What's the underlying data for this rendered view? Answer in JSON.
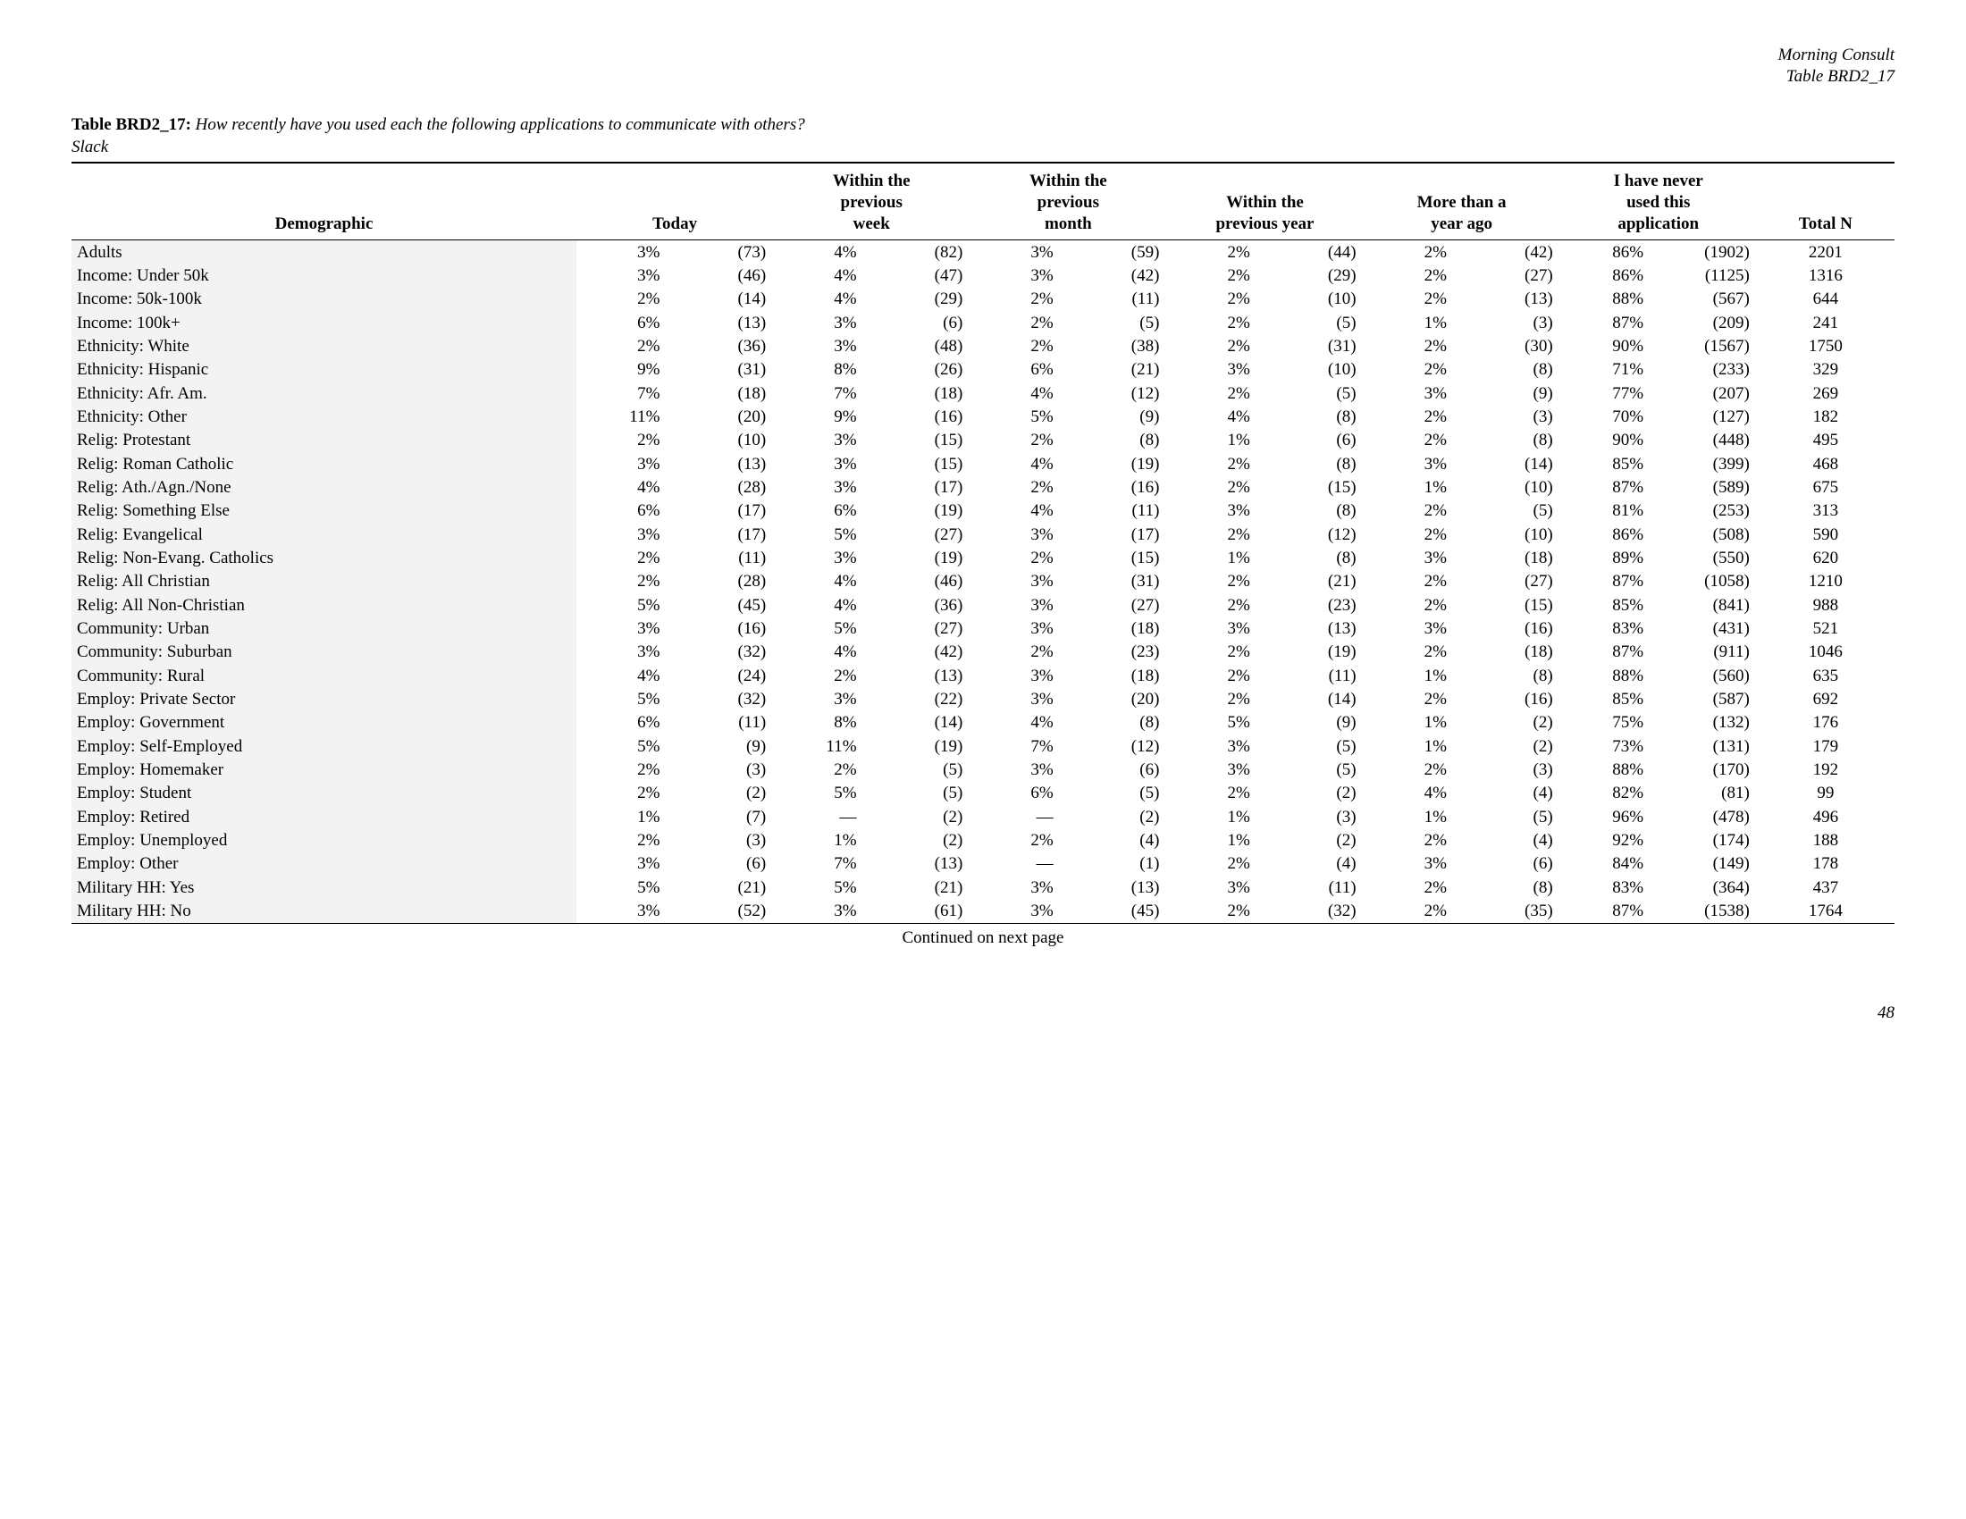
{
  "header": {
    "org": "Morning Consult",
    "tableref": "Table BRD2_17"
  },
  "title": {
    "label": "Table BRD2_17:",
    "question": "How recently have you used each the following applications to communicate with others?",
    "sub": "Slack"
  },
  "columns": {
    "demographic": "Demographic",
    "c1": "Today",
    "c2": "Within the previous week",
    "c3": "Within the previous month",
    "c4": "Within the previous year",
    "c5": "More than a year ago",
    "c6": "I have never used this application",
    "totaln": "Total N"
  },
  "rows": [
    {
      "label": "Adults",
      "c": [
        [
          "3%",
          "(73)"
        ],
        [
          "4%",
          "(82)"
        ],
        [
          "3%",
          "(59)"
        ],
        [
          "2%",
          "(44)"
        ],
        [
          "2%",
          "(42)"
        ],
        [
          "86%",
          "(1902)"
        ]
      ],
      "n": "2201"
    },
    {
      "label": "Income: Under 50k",
      "c": [
        [
          "3%",
          "(46)"
        ],
        [
          "4%",
          "(47)"
        ],
        [
          "3%",
          "(42)"
        ],
        [
          "2%",
          "(29)"
        ],
        [
          "2%",
          "(27)"
        ],
        [
          "86%",
          "(1125)"
        ]
      ],
      "n": "1316"
    },
    {
      "label": "Income: 50k-100k",
      "c": [
        [
          "2%",
          "(14)"
        ],
        [
          "4%",
          "(29)"
        ],
        [
          "2%",
          "(11)"
        ],
        [
          "2%",
          "(10)"
        ],
        [
          "2%",
          "(13)"
        ],
        [
          "88%",
          "(567)"
        ]
      ],
      "n": "644"
    },
    {
      "label": "Income: 100k+",
      "c": [
        [
          "6%",
          "(13)"
        ],
        [
          "3%",
          "(6)"
        ],
        [
          "2%",
          "(5)"
        ],
        [
          "2%",
          "(5)"
        ],
        [
          "1%",
          "(3)"
        ],
        [
          "87%",
          "(209)"
        ]
      ],
      "n": "241"
    },
    {
      "label": "Ethnicity: White",
      "c": [
        [
          "2%",
          "(36)"
        ],
        [
          "3%",
          "(48)"
        ],
        [
          "2%",
          "(38)"
        ],
        [
          "2%",
          "(31)"
        ],
        [
          "2%",
          "(30)"
        ],
        [
          "90%",
          "(1567)"
        ]
      ],
      "n": "1750"
    },
    {
      "label": "Ethnicity: Hispanic",
      "c": [
        [
          "9%",
          "(31)"
        ],
        [
          "8%",
          "(26)"
        ],
        [
          "6%",
          "(21)"
        ],
        [
          "3%",
          "(10)"
        ],
        [
          "2%",
          "(8)"
        ],
        [
          "71%",
          "(233)"
        ]
      ],
      "n": "329"
    },
    {
      "label": "Ethnicity: Afr. Am.",
      "c": [
        [
          "7%",
          "(18)"
        ],
        [
          "7%",
          "(18)"
        ],
        [
          "4%",
          "(12)"
        ],
        [
          "2%",
          "(5)"
        ],
        [
          "3%",
          "(9)"
        ],
        [
          "77%",
          "(207)"
        ]
      ],
      "n": "269"
    },
    {
      "label": "Ethnicity: Other",
      "c": [
        [
          "11%",
          "(20)"
        ],
        [
          "9%",
          "(16)"
        ],
        [
          "5%",
          "(9)"
        ],
        [
          "4%",
          "(8)"
        ],
        [
          "2%",
          "(3)"
        ],
        [
          "70%",
          "(127)"
        ]
      ],
      "n": "182"
    },
    {
      "label": "Relig: Protestant",
      "c": [
        [
          "2%",
          "(10)"
        ],
        [
          "3%",
          "(15)"
        ],
        [
          "2%",
          "(8)"
        ],
        [
          "1%",
          "(6)"
        ],
        [
          "2%",
          "(8)"
        ],
        [
          "90%",
          "(448)"
        ]
      ],
      "n": "495"
    },
    {
      "label": "Relig: Roman Catholic",
      "c": [
        [
          "3%",
          "(13)"
        ],
        [
          "3%",
          "(15)"
        ],
        [
          "4%",
          "(19)"
        ],
        [
          "2%",
          "(8)"
        ],
        [
          "3%",
          "(14)"
        ],
        [
          "85%",
          "(399)"
        ]
      ],
      "n": "468"
    },
    {
      "label": "Relig: Ath./Agn./None",
      "c": [
        [
          "4%",
          "(28)"
        ],
        [
          "3%",
          "(17)"
        ],
        [
          "2%",
          "(16)"
        ],
        [
          "2%",
          "(15)"
        ],
        [
          "1%",
          "(10)"
        ],
        [
          "87%",
          "(589)"
        ]
      ],
      "n": "675"
    },
    {
      "label": "Relig: Something Else",
      "c": [
        [
          "6%",
          "(17)"
        ],
        [
          "6%",
          "(19)"
        ],
        [
          "4%",
          "(11)"
        ],
        [
          "3%",
          "(8)"
        ],
        [
          "2%",
          "(5)"
        ],
        [
          "81%",
          "(253)"
        ]
      ],
      "n": "313"
    },
    {
      "label": "Relig: Evangelical",
      "c": [
        [
          "3%",
          "(17)"
        ],
        [
          "5%",
          "(27)"
        ],
        [
          "3%",
          "(17)"
        ],
        [
          "2%",
          "(12)"
        ],
        [
          "2%",
          "(10)"
        ],
        [
          "86%",
          "(508)"
        ]
      ],
      "n": "590"
    },
    {
      "label": "Relig: Non-Evang. Catholics",
      "c": [
        [
          "2%",
          "(11)"
        ],
        [
          "3%",
          "(19)"
        ],
        [
          "2%",
          "(15)"
        ],
        [
          "1%",
          "(8)"
        ],
        [
          "3%",
          "(18)"
        ],
        [
          "89%",
          "(550)"
        ]
      ],
      "n": "620"
    },
    {
      "label": "Relig: All Christian",
      "c": [
        [
          "2%",
          "(28)"
        ],
        [
          "4%",
          "(46)"
        ],
        [
          "3%",
          "(31)"
        ],
        [
          "2%",
          "(21)"
        ],
        [
          "2%",
          "(27)"
        ],
        [
          "87%",
          "(1058)"
        ]
      ],
      "n": "1210"
    },
    {
      "label": "Relig: All Non-Christian",
      "c": [
        [
          "5%",
          "(45)"
        ],
        [
          "4%",
          "(36)"
        ],
        [
          "3%",
          "(27)"
        ],
        [
          "2%",
          "(23)"
        ],
        [
          "2%",
          "(15)"
        ],
        [
          "85%",
          "(841)"
        ]
      ],
      "n": "988"
    },
    {
      "label": "Community: Urban",
      "c": [
        [
          "3%",
          "(16)"
        ],
        [
          "5%",
          "(27)"
        ],
        [
          "3%",
          "(18)"
        ],
        [
          "3%",
          "(13)"
        ],
        [
          "3%",
          "(16)"
        ],
        [
          "83%",
          "(431)"
        ]
      ],
      "n": "521"
    },
    {
      "label": "Community: Suburban",
      "c": [
        [
          "3%",
          "(32)"
        ],
        [
          "4%",
          "(42)"
        ],
        [
          "2%",
          "(23)"
        ],
        [
          "2%",
          "(19)"
        ],
        [
          "2%",
          "(18)"
        ],
        [
          "87%",
          "(911)"
        ]
      ],
      "n": "1046"
    },
    {
      "label": "Community: Rural",
      "c": [
        [
          "4%",
          "(24)"
        ],
        [
          "2%",
          "(13)"
        ],
        [
          "3%",
          "(18)"
        ],
        [
          "2%",
          "(11)"
        ],
        [
          "1%",
          "(8)"
        ],
        [
          "88%",
          "(560)"
        ]
      ],
      "n": "635"
    },
    {
      "label": "Employ: Private Sector",
      "c": [
        [
          "5%",
          "(32)"
        ],
        [
          "3%",
          "(22)"
        ],
        [
          "3%",
          "(20)"
        ],
        [
          "2%",
          "(14)"
        ],
        [
          "2%",
          "(16)"
        ],
        [
          "85%",
          "(587)"
        ]
      ],
      "n": "692"
    },
    {
      "label": "Employ: Government",
      "c": [
        [
          "6%",
          "(11)"
        ],
        [
          "8%",
          "(14)"
        ],
        [
          "4%",
          "(8)"
        ],
        [
          "5%",
          "(9)"
        ],
        [
          "1%",
          "(2)"
        ],
        [
          "75%",
          "(132)"
        ]
      ],
      "n": "176"
    },
    {
      "label": "Employ: Self-Employed",
      "c": [
        [
          "5%",
          "(9)"
        ],
        [
          "11%",
          "(19)"
        ],
        [
          "7%",
          "(12)"
        ],
        [
          "3%",
          "(5)"
        ],
        [
          "1%",
          "(2)"
        ],
        [
          "73%",
          "(131)"
        ]
      ],
      "n": "179"
    },
    {
      "label": "Employ: Homemaker",
      "c": [
        [
          "2%",
          "(3)"
        ],
        [
          "2%",
          "(5)"
        ],
        [
          "3%",
          "(6)"
        ],
        [
          "3%",
          "(5)"
        ],
        [
          "2%",
          "(3)"
        ],
        [
          "88%",
          "(170)"
        ]
      ],
      "n": "192"
    },
    {
      "label": "Employ: Student",
      "c": [
        [
          "2%",
          "(2)"
        ],
        [
          "5%",
          "(5)"
        ],
        [
          "6%",
          "(5)"
        ],
        [
          "2%",
          "(2)"
        ],
        [
          "4%",
          "(4)"
        ],
        [
          "82%",
          "(81)"
        ]
      ],
      "n": "99"
    },
    {
      "label": "Employ: Retired",
      "c": [
        [
          "1%",
          "(7)"
        ],
        [
          "—",
          "(2)"
        ],
        [
          "—",
          "(2)"
        ],
        [
          "1%",
          "(3)"
        ],
        [
          "1%",
          "(5)"
        ],
        [
          "96%",
          "(478)"
        ]
      ],
      "n": "496"
    },
    {
      "label": "Employ: Unemployed",
      "c": [
        [
          "2%",
          "(3)"
        ],
        [
          "1%",
          "(2)"
        ],
        [
          "2%",
          "(4)"
        ],
        [
          "1%",
          "(2)"
        ],
        [
          "2%",
          "(4)"
        ],
        [
          "92%",
          "(174)"
        ]
      ],
      "n": "188"
    },
    {
      "label": "Employ: Other",
      "c": [
        [
          "3%",
          "(6)"
        ],
        [
          "7%",
          "(13)"
        ],
        [
          "—",
          "(1)"
        ],
        [
          "2%",
          "(4)"
        ],
        [
          "3%",
          "(6)"
        ],
        [
          "84%",
          "(149)"
        ]
      ],
      "n": "178"
    },
    {
      "label": "Military HH: Yes",
      "c": [
        [
          "5%",
          "(21)"
        ],
        [
          "5%",
          "(21)"
        ],
        [
          "3%",
          "(13)"
        ],
        [
          "3%",
          "(11)"
        ],
        [
          "2%",
          "(8)"
        ],
        [
          "83%",
          "(364)"
        ]
      ],
      "n": "437"
    },
    {
      "label": "Military HH: No",
      "c": [
        [
          "3%",
          "(52)"
        ],
        [
          "3%",
          "(61)"
        ],
        [
          "3%",
          "(45)"
        ],
        [
          "2%",
          "(32)"
        ],
        [
          "2%",
          "(35)"
        ],
        [
          "87%",
          "(1538)"
        ]
      ],
      "n": "1764"
    }
  ],
  "continued": "Continued on next page",
  "pagenum": "48"
}
